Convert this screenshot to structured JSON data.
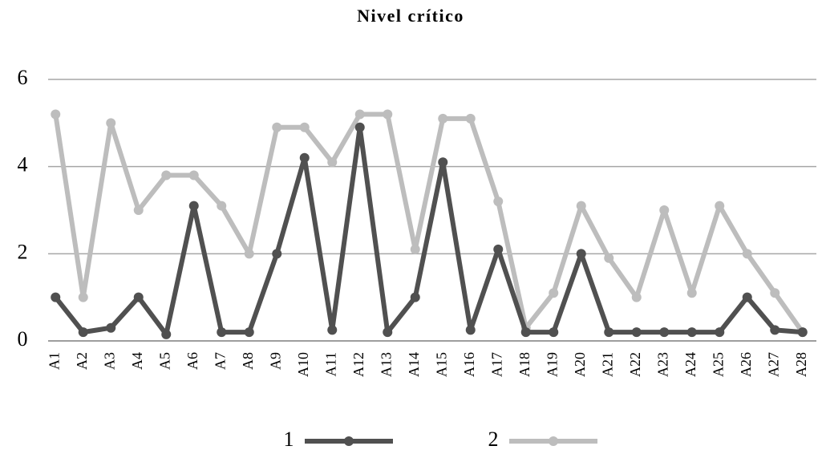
{
  "chart_data": {
    "type": "line",
    "title": "Nivel crítico",
    "categories": [
      "A1",
      "A2",
      "A3",
      "A4",
      "A5",
      "A6",
      "A7",
      "A8",
      "A9",
      "A10",
      "A11",
      "A12",
      "A13",
      "A14",
      "A15",
      "A16",
      "A17",
      "A18",
      "A19",
      "A20",
      "A21",
      "A22",
      "A23",
      "A24",
      "A25",
      "A26",
      "A27",
      "A28"
    ],
    "series": [
      {
        "name": "1",
        "color": "#505050",
        "values": [
          1.0,
          0.2,
          0.3,
          1.0,
          0.15,
          3.1,
          0.2,
          0.2,
          2.0,
          4.2,
          0.25,
          4.9,
          0.2,
          1.0,
          4.1,
          0.25,
          2.1,
          0.2,
          0.2,
          2.0,
          0.2,
          0.2,
          0.2,
          0.2,
          0.2,
          1.0,
          0.25,
          0.2
        ]
      },
      {
        "name": "2",
        "color": "#bdbdbd",
        "values": [
          5.2,
          1.0,
          5.0,
          3.0,
          3.8,
          3.8,
          3.1,
          2.0,
          4.9,
          4.9,
          4.1,
          5.2,
          5.2,
          2.1,
          5.1,
          5.1,
          3.2,
          0.3,
          1.1,
          3.1,
          1.9,
          1.0,
          3.0,
          1.1,
          3.1,
          2.0,
          1.1,
          0.2
        ]
      }
    ],
    "ylim": [
      0,
      6
    ],
    "yticks": [
      0,
      2,
      4,
      6
    ],
    "grid": true,
    "legend": "bottom"
  }
}
